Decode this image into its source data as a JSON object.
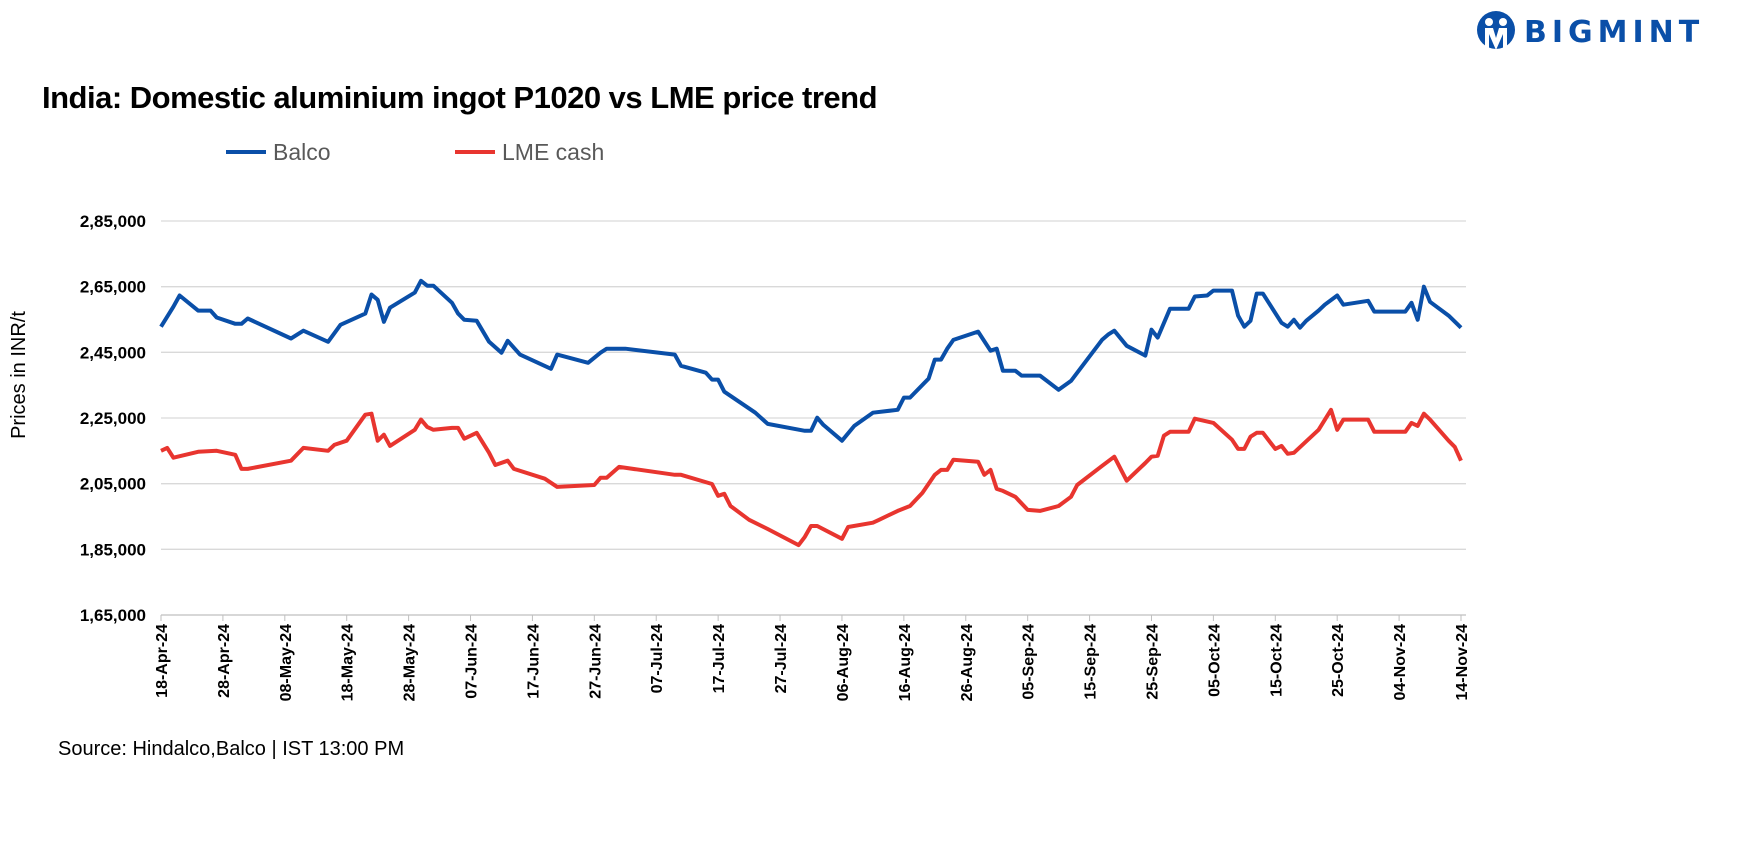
{
  "brand": {
    "name": "BIGMINT",
    "color": "#0a4fa8"
  },
  "source": "Source: Hindalco,Balco | IST 13:00 PM",
  "chart_data": {
    "type": "line",
    "title": "India: Domestic aluminium ingot P1020 vs LME price trend",
    "xlabel": "",
    "ylabel": "Prices in INR/t",
    "ylim": [
      165000,
      285000
    ],
    "yticks": [
      165000,
      185000,
      205000,
      225000,
      245000,
      265000,
      285000
    ],
    "ytick_labels": [
      "1,65,000",
      "1,85,000",
      "2,05,000",
      "2,25,000",
      "2,45,000",
      "2,65,000",
      "2,85,000"
    ],
    "xlim": [
      "2024-04-18",
      "2024-11-14"
    ],
    "xticks": [
      "2024-04-18",
      "2024-04-28",
      "2024-05-08",
      "2024-05-18",
      "2024-05-28",
      "2024-06-07",
      "2024-06-17",
      "2024-06-27",
      "2024-07-07",
      "2024-07-17",
      "2024-07-27",
      "2024-08-06",
      "2024-08-16",
      "2024-08-26",
      "2024-09-05",
      "2024-09-15",
      "2024-09-25",
      "2024-10-05",
      "2024-10-15",
      "2024-10-25",
      "2024-11-04",
      "2024-11-14"
    ],
    "xtick_labels": [
      "18-Apr-24",
      "28-Apr-24",
      "08-May-24",
      "18-May-24",
      "28-May-24",
      "07-Jun-24",
      "17-Jun-24",
      "27-Jun-24",
      "07-Jul-24",
      "17-Jul-24",
      "27-Jul-24",
      "06-Aug-24",
      "16-Aug-24",
      "26-Aug-24",
      "05-Sep-24",
      "15-Sep-24",
      "25-Sep-24",
      "05-Oct-24",
      "15-Oct-24",
      "25-Oct-24",
      "04-Nov-24",
      "14-Nov-24"
    ],
    "grid": true,
    "legend_position": "top",
    "series": [
      {
        "name": "Balco",
        "color": "#0a4fa8",
        "points": [
          [
            "2024-04-18",
            252800
          ],
          [
            "2024-04-20",
            258900
          ],
          [
            "2024-04-21",
            262300
          ],
          [
            "2024-04-24",
            257700
          ],
          [
            "2024-04-26",
            257700
          ],
          [
            "2024-04-27",
            255600
          ],
          [
            "2024-04-30",
            253700
          ],
          [
            "2024-05-01",
            253700
          ],
          [
            "2024-05-02",
            255300
          ],
          [
            "2024-05-09",
            249200
          ],
          [
            "2024-05-11",
            251600
          ],
          [
            "2024-05-15",
            248200
          ],
          [
            "2024-05-17",
            253400
          ],
          [
            "2024-05-21",
            256800
          ],
          [
            "2024-05-22",
            262600
          ],
          [
            "2024-05-23",
            261000
          ],
          [
            "2024-05-24",
            254300
          ],
          [
            "2024-05-25",
            258600
          ],
          [
            "2024-05-29",
            263200
          ],
          [
            "2024-05-30",
            266800
          ],
          [
            "2024-05-31",
            265300
          ],
          [
            "2024-06-01",
            265300
          ],
          [
            "2024-06-04",
            260100
          ],
          [
            "2024-06-05",
            256800
          ],
          [
            "2024-06-06",
            254900
          ],
          [
            "2024-06-08",
            254600
          ],
          [
            "2024-06-10",
            248200
          ],
          [
            "2024-06-12",
            244900
          ],
          [
            "2024-06-13",
            248500
          ],
          [
            "2024-06-15",
            244300
          ],
          [
            "2024-06-20",
            240000
          ],
          [
            "2024-06-21",
            244300
          ],
          [
            "2024-06-26",
            241800
          ],
          [
            "2024-06-28",
            244900
          ],
          [
            "2024-06-29",
            246100
          ],
          [
            "2024-07-02",
            246100
          ],
          [
            "2024-07-10",
            244300
          ],
          [
            "2024-07-11",
            240900
          ],
          [
            "2024-07-15",
            238800
          ],
          [
            "2024-07-16",
            236700
          ],
          [
            "2024-07-17",
            236700
          ],
          [
            "2024-07-18",
            233000
          ],
          [
            "2024-07-23",
            226600
          ],
          [
            "2024-07-25",
            223200
          ],
          [
            "2024-07-31",
            221100
          ],
          [
            "2024-08-01",
            221100
          ],
          [
            "2024-08-02",
            225100
          ],
          [
            "2024-08-03",
            222900
          ],
          [
            "2024-08-06",
            218100
          ],
          [
            "2024-08-08",
            222600
          ],
          [
            "2024-08-11",
            226600
          ],
          [
            "2024-08-15",
            227500
          ],
          [
            "2024-08-16",
            231200
          ],
          [
            "2024-08-17",
            231200
          ],
          [
            "2024-08-20",
            237000
          ],
          [
            "2024-08-21",
            242800
          ],
          [
            "2024-08-22",
            242800
          ],
          [
            "2024-08-23",
            246100
          ],
          [
            "2024-08-24",
            248800
          ],
          [
            "2024-08-28",
            251300
          ],
          [
            "2024-08-30",
            245500
          ],
          [
            "2024-08-31",
            246100
          ],
          [
            "2024-09-01",
            239400
          ],
          [
            "2024-09-03",
            239400
          ],
          [
            "2024-09-04",
            237900
          ],
          [
            "2024-09-07",
            237900
          ],
          [
            "2024-09-10",
            233600
          ],
          [
            "2024-09-12",
            236300
          ],
          [
            "2024-09-17",
            248800
          ],
          [
            "2024-09-18",
            250400
          ],
          [
            "2024-09-19",
            251600
          ],
          [
            "2024-09-21",
            247000
          ],
          [
            "2024-09-24",
            244000
          ],
          [
            "2024-09-25",
            251900
          ],
          [
            "2024-09-26",
            249500
          ],
          [
            "2024-09-28",
            258300
          ],
          [
            "2024-10-01",
            258300
          ],
          [
            "2024-10-02",
            262000
          ],
          [
            "2024-10-04",
            262300
          ],
          [
            "2024-10-05",
            263800
          ],
          [
            "2024-10-08",
            263800
          ],
          [
            "2024-10-09",
            256200
          ],
          [
            "2024-10-10",
            252800
          ],
          [
            "2024-10-11",
            254600
          ],
          [
            "2024-10-12",
            262900
          ],
          [
            "2024-10-13",
            262900
          ],
          [
            "2024-10-16",
            254000
          ],
          [
            "2024-10-17",
            252800
          ],
          [
            "2024-10-18",
            254900
          ],
          [
            "2024-10-19",
            252500
          ],
          [
            "2024-10-20",
            254600
          ],
          [
            "2024-10-22",
            257700
          ],
          [
            "2024-10-23",
            259500
          ],
          [
            "2024-10-25",
            262300
          ],
          [
            "2024-10-26",
            259500
          ],
          [
            "2024-10-30",
            260700
          ],
          [
            "2024-10-31",
            257400
          ],
          [
            "2024-11-05",
            257400
          ],
          [
            "2024-11-06",
            260100
          ],
          [
            "2024-11-07",
            254900
          ],
          [
            "2024-11-08",
            265000
          ],
          [
            "2024-11-09",
            260400
          ],
          [
            "2024-11-12",
            256200
          ],
          [
            "2024-11-14",
            252500
          ]
        ]
      },
      {
        "name": "LME cash",
        "color": "#e8352f",
        "points": [
          [
            "2024-04-18",
            215000
          ],
          [
            "2024-04-19",
            215900
          ],
          [
            "2024-04-20",
            212900
          ],
          [
            "2024-04-24",
            214700
          ],
          [
            "2024-04-27",
            215000
          ],
          [
            "2024-04-30",
            213800
          ],
          [
            "2024-05-01",
            209500
          ],
          [
            "2024-05-02",
            209500
          ],
          [
            "2024-05-09",
            212000
          ],
          [
            "2024-05-11",
            215900
          ],
          [
            "2024-05-15",
            215000
          ],
          [
            "2024-05-16",
            216800
          ],
          [
            "2024-05-18",
            218100
          ],
          [
            "2024-05-21",
            226000
          ],
          [
            "2024-05-22",
            226300
          ],
          [
            "2024-05-23",
            218100
          ],
          [
            "2024-05-24",
            219900
          ],
          [
            "2024-05-25",
            216500
          ],
          [
            "2024-05-29",
            221400
          ],
          [
            "2024-05-30",
            224500
          ],
          [
            "2024-05-31",
            222300
          ],
          [
            "2024-06-01",
            221400
          ],
          [
            "2024-06-04",
            222000
          ],
          [
            "2024-06-05",
            222000
          ],
          [
            "2024-06-06",
            218700
          ],
          [
            "2024-06-08",
            220500
          ],
          [
            "2024-06-10",
            214400
          ],
          [
            "2024-06-11",
            210700
          ],
          [
            "2024-06-13",
            212000
          ],
          [
            "2024-06-14",
            209500
          ],
          [
            "2024-06-19",
            206500
          ],
          [
            "2024-06-21",
            204000
          ],
          [
            "2024-06-27",
            204600
          ],
          [
            "2024-06-28",
            206800
          ],
          [
            "2024-06-29",
            206800
          ],
          [
            "2024-07-01",
            210100
          ],
          [
            "2024-07-10",
            207700
          ],
          [
            "2024-07-11",
            207700
          ],
          [
            "2024-07-16",
            204900
          ],
          [
            "2024-07-17",
            201300
          ],
          [
            "2024-07-18",
            201900
          ],
          [
            "2024-07-19",
            198200
          ],
          [
            "2024-07-22",
            194000
          ],
          [
            "2024-07-25",
            191200
          ],
          [
            "2024-07-30",
            186300
          ],
          [
            "2024-07-31",
            188800
          ],
          [
            "2024-08-01",
            192100
          ],
          [
            "2024-08-02",
            192100
          ],
          [
            "2024-08-06",
            188200
          ],
          [
            "2024-08-07",
            191800
          ],
          [
            "2024-08-11",
            193100
          ],
          [
            "2024-08-12",
            194000
          ],
          [
            "2024-08-15",
            196700
          ],
          [
            "2024-08-17",
            198200
          ],
          [
            "2024-08-19",
            202200
          ],
          [
            "2024-08-21",
            207700
          ],
          [
            "2024-08-22",
            209200
          ],
          [
            "2024-08-23",
            209200
          ],
          [
            "2024-08-24",
            212300
          ],
          [
            "2024-08-28",
            211700
          ],
          [
            "2024-08-29",
            207700
          ],
          [
            "2024-08-30",
            209200
          ],
          [
            "2024-08-31",
            203400
          ],
          [
            "2024-09-01",
            202800
          ],
          [
            "2024-09-03",
            201000
          ],
          [
            "2024-09-05",
            197000
          ],
          [
            "2024-09-07",
            196700
          ],
          [
            "2024-09-10",
            198200
          ],
          [
            "2024-09-12",
            201000
          ],
          [
            "2024-09-13",
            204600
          ],
          [
            "2024-09-17",
            210400
          ],
          [
            "2024-09-19",
            213200
          ],
          [
            "2024-09-21",
            205900
          ],
          [
            "2024-09-24",
            211300
          ],
          [
            "2024-09-25",
            213200
          ],
          [
            "2024-09-26",
            213500
          ],
          [
            "2024-09-27",
            219600
          ],
          [
            "2024-09-28",
            220800
          ],
          [
            "2024-10-01",
            220800
          ],
          [
            "2024-10-02",
            224800
          ],
          [
            "2024-10-05",
            223500
          ],
          [
            "2024-10-08",
            218400
          ],
          [
            "2024-10-09",
            215600
          ],
          [
            "2024-10-10",
            215600
          ],
          [
            "2024-10-11",
            219300
          ],
          [
            "2024-10-12",
            220500
          ],
          [
            "2024-10-13",
            220500
          ],
          [
            "2024-10-15",
            215600
          ],
          [
            "2024-10-16",
            216500
          ],
          [
            "2024-10-17",
            214100
          ],
          [
            "2024-10-18",
            214400
          ],
          [
            "2024-10-22",
            221400
          ],
          [
            "2024-10-24",
            227500
          ],
          [
            "2024-10-25",
            221400
          ],
          [
            "2024-10-26",
            224500
          ],
          [
            "2024-10-30",
            224500
          ],
          [
            "2024-10-31",
            220800
          ],
          [
            "2024-11-05",
            220800
          ],
          [
            "2024-11-06",
            223500
          ],
          [
            "2024-11-07",
            222600
          ],
          [
            "2024-11-08",
            226300
          ],
          [
            "2024-11-09",
            224500
          ],
          [
            "2024-11-12",
            218100
          ],
          [
            "2024-11-13",
            216200
          ],
          [
            "2024-11-14",
            212000
          ]
        ]
      }
    ]
  }
}
